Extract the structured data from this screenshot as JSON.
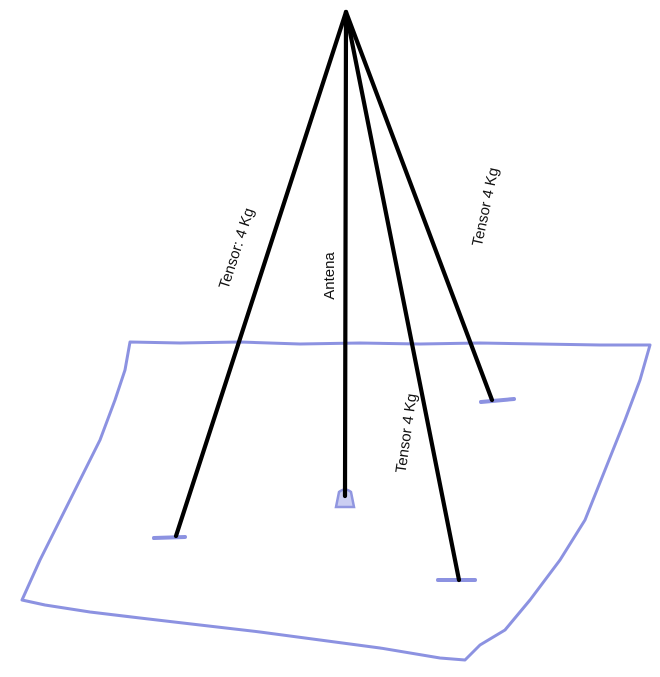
{
  "labels": {
    "left_tensor": "Tensor: 4 Kg",
    "antenna": "Antena",
    "right_tensor": "Tensor 4 Kg",
    "middle_tensor": "Tensor 4 Kg"
  },
  "colors": {
    "cable": "#000000",
    "ground": "#7f86de",
    "background": "#ffffff"
  }
}
